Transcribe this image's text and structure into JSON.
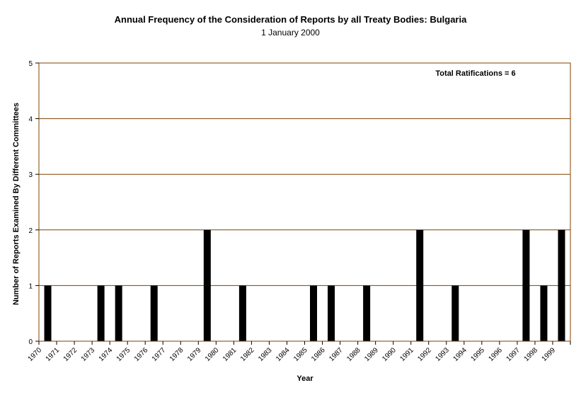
{
  "chart_data": {
    "type": "bar",
    "title": "Annual Frequency of the Consideration of Reports by all Treaty Bodies: Bulgaria",
    "subtitle": "1 January 2000",
    "xlabel": "Year",
    "ylabel": "Number of Reports Examined By Different Committees",
    "ylim": [
      0,
      5
    ],
    "yticks": [
      "0",
      "1",
      "2",
      "3",
      "4",
      "5"
    ],
    "grid": true,
    "annotation": "Total Ratifications = 6",
    "categories": [
      "1970",
      "1971",
      "1972",
      "1973",
      "1974",
      "1975",
      "1976",
      "1977",
      "1978",
      "1979",
      "1980",
      "1981",
      "1982",
      "1983",
      "1984",
      "1985",
      "1986",
      "1987",
      "1988",
      "1989",
      "1990",
      "1991",
      "1992",
      "1993",
      "1994",
      "1995",
      "1996",
      "1997",
      "1998",
      "1999"
    ],
    "values": [
      1,
      0,
      0,
      1,
      1,
      0,
      1,
      0,
      0,
      2,
      0,
      1,
      0,
      0,
      0,
      1,
      1,
      0,
      1,
      0,
      0,
      2,
      0,
      1,
      0,
      0,
      0,
      2,
      1,
      2
    ],
    "colors": {
      "bar": "#000000",
      "grid": "#804000",
      "frame": "#804000"
    }
  }
}
